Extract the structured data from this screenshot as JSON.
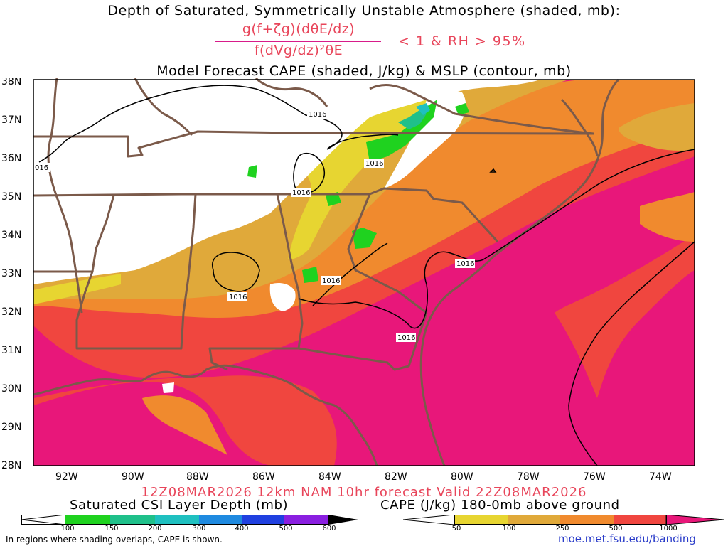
{
  "header": {
    "title_line1": "Depth of Saturated, Symmetrically Unstable Atmosphere (shaded, mb):",
    "fraction_numerator": "g(f+ζg)(dθE/dz)",
    "fraction_denominator": "f(dVg/dz)²θE",
    "criteria": "< 1 & RH > 95%",
    "title_line3": "Model Forecast CAPE (shaded, J/kg) & MSLP (contour, mb)"
  },
  "map": {
    "lat_labels": [
      "38N",
      "37N",
      "36N",
      "35N",
      "34N",
      "33N",
      "32N",
      "31N",
      "30N",
      "29N",
      "28N"
    ],
    "lon_labels": [
      "92W",
      "90W",
      "88W",
      "86W",
      "84W",
      "82W",
      "80W",
      "78W",
      "76W",
      "74W"
    ],
    "contour_labels": [
      "1016",
      "016",
      "1016",
      "1016",
      "1016",
      "1016",
      "1016",
      "1016"
    ]
  },
  "footer": {
    "valid_line": "12Z08MAR2026 12km NAM 10hr forecast Valid 22Z08MAR2026",
    "csi_title": "Saturated CSI Layer Depth (mb)",
    "cape_title": "CAPE (J/kg) 180-0mb above ground",
    "csi_ticks": [
      "100",
      "150",
      "200",
      "300",
      "400",
      "500",
      "600"
    ],
    "cape_ticks": [
      "50",
      "100",
      "250",
      "500",
      "1000"
    ],
    "note": "In regions where shading overlaps, CAPE is shown.",
    "url": "moe.met.fsu.edu/banding"
  },
  "colors": {
    "cape_50_100": "#e7d531",
    "cape_100_250": "#e0a93a",
    "cape_250_500": "#f08a2e",
    "cape_500_1000": "#f0463f",
    "cape_1000_plus": "#e8177a",
    "csi_100_150": "#1fd21f",
    "csi_150_200": "#1fc08a",
    "csi_200_300": "#1fc0c0",
    "csi_300_400": "#1f8ae0",
    "csi_400_500": "#2040e0",
    "csi_500_600": "#8a1fe0",
    "border": "#7b5a4a"
  }
}
